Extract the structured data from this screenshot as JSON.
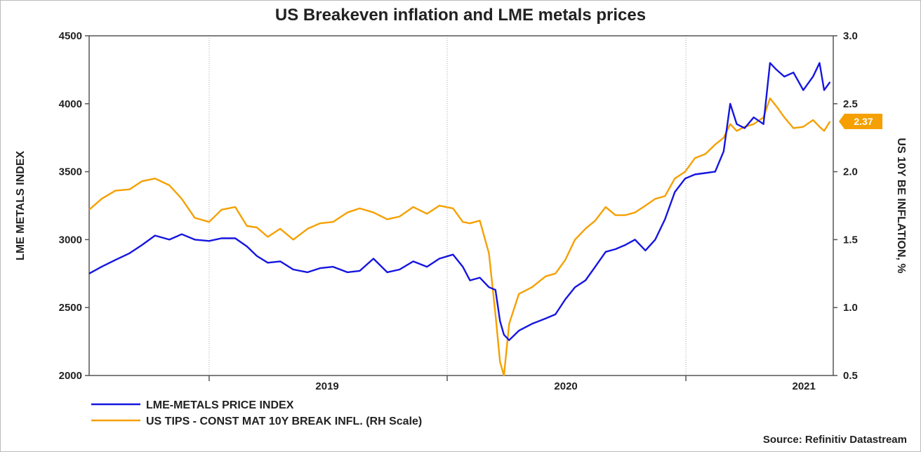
{
  "chart_data": {
    "type": "line",
    "title": "US Breakeven inflation and LME metals prices",
    "ylabel": "LME METALS INDEX",
    "y2label": "US 10Y BE INFLATION, %",
    "source": "Source: Refinitiv Datastream",
    "xlim": [
      "2018-07-01",
      "2021-08-15"
    ],
    "ylim": [
      2000,
      4500
    ],
    "y2lim": [
      0.5,
      3.0
    ],
    "y_ticks": [
      "4500",
      "4000",
      "3500",
      "3000",
      "2500",
      "2000"
    ],
    "y2_ticks": [
      "3.0",
      "2.5",
      "2.0",
      "1.5",
      "1.0",
      "0.5"
    ],
    "x_ticks": [
      "2019",
      "2020",
      "2021"
    ],
    "grid": "vertical lines at year boundaries",
    "legend_position": "bottom-left",
    "last_value_label": "2.37",
    "series": [
      {
        "name": "LME-METALS PRICE INDEX",
        "color": "#1515e0",
        "axis": "left",
        "points": [
          [
            "2018-07-01",
            2750
          ],
          [
            "2018-07-20",
            2800
          ],
          [
            "2018-08-10",
            2850
          ],
          [
            "2018-09-01",
            2900
          ],
          [
            "2018-09-20",
            2960
          ],
          [
            "2018-10-10",
            3030
          ],
          [
            "2018-11-01",
            3000
          ],
          [
            "2018-11-20",
            3040
          ],
          [
            "2018-12-10",
            3000
          ],
          [
            "2019-01-01",
            2990
          ],
          [
            "2019-01-20",
            3010
          ],
          [
            "2019-02-10",
            3010
          ],
          [
            "2019-02-28",
            2950
          ],
          [
            "2019-03-15",
            2880
          ],
          [
            "2019-04-01",
            2830
          ],
          [
            "2019-04-20",
            2840
          ],
          [
            "2019-05-10",
            2780
          ],
          [
            "2019-06-01",
            2760
          ],
          [
            "2019-06-20",
            2790
          ],
          [
            "2019-07-10",
            2800
          ],
          [
            "2019-08-01",
            2760
          ],
          [
            "2019-08-20",
            2770
          ],
          [
            "2019-09-10",
            2860
          ],
          [
            "2019-10-01",
            2760
          ],
          [
            "2019-10-20",
            2780
          ],
          [
            "2019-11-10",
            2840
          ],
          [
            "2019-12-01",
            2800
          ],
          [
            "2019-12-20",
            2860
          ],
          [
            "2020-01-10",
            2890
          ],
          [
            "2020-01-25",
            2800
          ],
          [
            "2020-02-05",
            2700
          ],
          [
            "2020-02-20",
            2720
          ],
          [
            "2020-03-05",
            2650
          ],
          [
            "2020-03-15",
            2630
          ],
          [
            "2020-03-22",
            2400
          ],
          [
            "2020-03-28",
            2300
          ],
          [
            "2020-04-05",
            2260
          ],
          [
            "2020-04-20",
            2330
          ],
          [
            "2020-05-10",
            2380
          ],
          [
            "2020-05-31",
            2420
          ],
          [
            "2020-06-15",
            2450
          ],
          [
            "2020-06-30",
            2560
          ],
          [
            "2020-07-15",
            2650
          ],
          [
            "2020-07-31",
            2700
          ],
          [
            "2020-08-15",
            2800
          ],
          [
            "2020-08-31",
            2910
          ],
          [
            "2020-09-15",
            2930
          ],
          [
            "2020-09-30",
            2960
          ],
          [
            "2020-10-15",
            3000
          ],
          [
            "2020-10-31",
            2920
          ],
          [
            "2020-11-15",
            3000
          ],
          [
            "2020-11-30",
            3150
          ],
          [
            "2020-12-15",
            3350
          ],
          [
            "2020-12-31",
            3450
          ],
          [
            "2021-01-15",
            3480
          ],
          [
            "2021-01-31",
            3490
          ],
          [
            "2021-02-15",
            3500
          ],
          [
            "2021-02-28",
            3650
          ],
          [
            "2021-03-10",
            4000
          ],
          [
            "2021-03-20",
            3850
          ],
          [
            "2021-04-01",
            3820
          ],
          [
            "2021-04-15",
            3900
          ],
          [
            "2021-04-30",
            3850
          ],
          [
            "2021-05-10",
            4300
          ],
          [
            "2021-05-20",
            4250
          ],
          [
            "2021-06-01",
            4200
          ],
          [
            "2021-06-15",
            4230
          ],
          [
            "2021-06-30",
            4100
          ],
          [
            "2021-07-15",
            4200
          ],
          [
            "2021-07-25",
            4300
          ],
          [
            "2021-08-01",
            4100
          ],
          [
            "2021-08-10",
            4160
          ]
        ]
      },
      {
        "name": "US TIPS - CONST MAT 10Y BREAK INFL. (RH Scale)",
        "color": "#f5a000",
        "axis": "right",
        "points": [
          [
            "2018-07-01",
            1.72
          ],
          [
            "2018-07-20",
            1.8
          ],
          [
            "2018-08-10",
            1.86
          ],
          [
            "2018-09-01",
            1.87
          ],
          [
            "2018-09-20",
            1.93
          ],
          [
            "2018-10-10",
            1.95
          ],
          [
            "2018-11-01",
            1.9
          ],
          [
            "2018-11-20",
            1.8
          ],
          [
            "2018-12-10",
            1.66
          ],
          [
            "2019-01-01",
            1.63
          ],
          [
            "2019-01-20",
            1.72
          ],
          [
            "2019-02-10",
            1.74
          ],
          [
            "2019-02-28",
            1.6
          ],
          [
            "2019-03-15",
            1.59
          ],
          [
            "2019-04-01",
            1.52
          ],
          [
            "2019-04-20",
            1.58
          ],
          [
            "2019-05-10",
            1.5
          ],
          [
            "2019-06-01",
            1.58
          ],
          [
            "2019-06-20",
            1.62
          ],
          [
            "2019-07-10",
            1.63
          ],
          [
            "2019-08-01",
            1.7
          ],
          [
            "2019-08-20",
            1.73
          ],
          [
            "2019-09-10",
            1.7
          ],
          [
            "2019-10-01",
            1.65
          ],
          [
            "2019-10-20",
            1.67
          ],
          [
            "2019-11-10",
            1.74
          ],
          [
            "2019-12-01",
            1.69
          ],
          [
            "2019-12-20",
            1.75
          ],
          [
            "2020-01-10",
            1.73
          ],
          [
            "2020-01-25",
            1.63
          ],
          [
            "2020-02-05",
            1.62
          ],
          [
            "2020-02-20",
            1.64
          ],
          [
            "2020-03-05",
            1.4
          ],
          [
            "2020-03-15",
            0.95
          ],
          [
            "2020-03-22",
            0.6
          ],
          [
            "2020-03-28",
            0.5
          ],
          [
            "2020-04-05",
            0.88
          ],
          [
            "2020-04-20",
            1.1
          ],
          [
            "2020-05-10",
            1.15
          ],
          [
            "2020-05-31",
            1.23
          ],
          [
            "2020-06-15",
            1.25
          ],
          [
            "2020-06-30",
            1.35
          ],
          [
            "2020-07-15",
            1.5
          ],
          [
            "2020-07-31",
            1.58
          ],
          [
            "2020-08-15",
            1.64
          ],
          [
            "2020-08-31",
            1.74
          ],
          [
            "2020-09-15",
            1.68
          ],
          [
            "2020-09-30",
            1.68
          ],
          [
            "2020-10-15",
            1.7
          ],
          [
            "2020-10-31",
            1.75
          ],
          [
            "2020-11-15",
            1.8
          ],
          [
            "2020-11-30",
            1.82
          ],
          [
            "2020-12-15",
            1.95
          ],
          [
            "2020-12-31",
            2.0
          ],
          [
            "2021-01-15",
            2.1
          ],
          [
            "2021-01-31",
            2.13
          ],
          [
            "2021-02-15",
            2.2
          ],
          [
            "2021-02-28",
            2.25
          ],
          [
            "2021-03-10",
            2.35
          ],
          [
            "2021-03-20",
            2.3
          ],
          [
            "2021-04-01",
            2.33
          ],
          [
            "2021-04-15",
            2.35
          ],
          [
            "2021-04-30",
            2.4
          ],
          [
            "2021-05-10",
            2.54
          ],
          [
            "2021-05-20",
            2.48
          ],
          [
            "2021-06-01",
            2.4
          ],
          [
            "2021-06-15",
            2.32
          ],
          [
            "2021-06-30",
            2.33
          ],
          [
            "2021-07-15",
            2.38
          ],
          [
            "2021-07-25",
            2.33
          ],
          [
            "2021-08-01",
            2.3
          ],
          [
            "2021-08-10",
            2.37
          ]
        ]
      }
    ]
  }
}
